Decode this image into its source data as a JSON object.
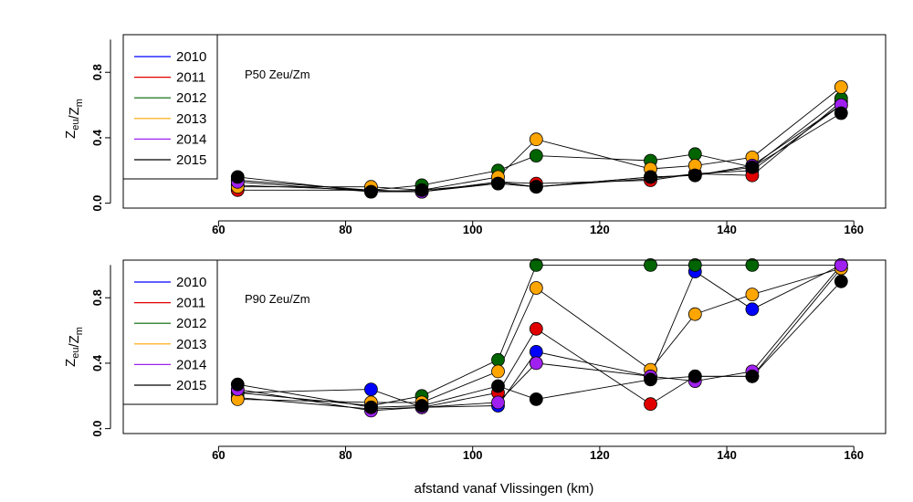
{
  "xlabel": "afstand vanaf Vlissingen (km)",
  "series_colors": {
    "2010": "#0000ff",
    "2011": "#e00000",
    "2012": "#006400",
    "2013": "#ffa500",
    "2014": "#a020f0",
    "2015": "#000000"
  },
  "chart_data": [
    {
      "type": "scatter",
      "title": "P50 Zeu/Zm",
      "ylabel": "Z_eu / Z_m",
      "xlim": [
        45,
        165
      ],
      "ylim": [
        -0.03,
        1.03
      ],
      "xticks": [
        60,
        80,
        100,
        120,
        140,
        160
      ],
      "yticks": [
        0.0,
        0.4,
        0.8
      ],
      "ytick_labels": [
        "0.0",
        "0.4",
        "0.8"
      ],
      "legend": [
        "2010",
        "2011",
        "2012",
        "2013",
        "2014",
        "2015"
      ],
      "legend_position": "top-left",
      "series": [
        {
          "name": "2010",
          "color": "#0000ff",
          "x": [
            63,
            84,
            92,
            104,
            110,
            128,
            135,
            144,
            158
          ],
          "y": [
            0.11,
            0.08,
            0.07,
            0.13,
            0.1,
            0.15,
            0.18,
            0.2,
            0.6
          ]
        },
        {
          "name": "2011",
          "color": "#e00000",
          "x": [
            63,
            84,
            92,
            104,
            110,
            128,
            135,
            144,
            158
          ],
          "y": [
            0.08,
            0.08,
            0.07,
            0.13,
            0.12,
            0.14,
            0.18,
            0.17,
            0.62
          ]
        },
        {
          "name": "2012",
          "color": "#006400",
          "x": [
            63,
            84,
            92,
            104,
            110,
            128,
            135,
            144,
            158
          ],
          "y": [
            0.14,
            0.08,
            0.11,
            0.2,
            0.29,
            0.26,
            0.3,
            0.22,
            0.64
          ]
        },
        {
          "name": "2013",
          "color": "#ffa500",
          "x": [
            63,
            84,
            92,
            104,
            110,
            128,
            135,
            144,
            158
          ],
          "y": [
            0.1,
            0.1,
            0.08,
            0.16,
            0.39,
            0.21,
            0.23,
            0.28,
            0.71
          ]
        },
        {
          "name": "2014",
          "color": "#a020f0",
          "x": [
            63,
            84,
            92,
            104,
            110,
            128,
            135,
            144,
            158
          ],
          "y": [
            0.13,
            0.07,
            0.07,
            0.12,
            0.1,
            0.16,
            0.17,
            0.23,
            0.6
          ]
        },
        {
          "name": "2015",
          "color": "#000000",
          "x": [
            63,
            84,
            92,
            104,
            110,
            128,
            135,
            144,
            158
          ],
          "y": [
            0.16,
            0.07,
            0.08,
            0.12,
            0.1,
            0.16,
            0.17,
            0.22,
            0.55
          ]
        }
      ]
    },
    {
      "type": "scatter",
      "title": "P90 Zeu/Zm",
      "ylabel": "Z_eu / Z_m",
      "xlim": [
        45,
        165
      ],
      "ylim": [
        -0.03,
        1.03
      ],
      "xticks": [
        60,
        80,
        100,
        120,
        140,
        160
      ],
      "yticks": [
        0.0,
        0.4,
        0.8
      ],
      "ytick_labels": [
        "0.0",
        "0.4",
        "0.8"
      ],
      "legend": [
        "2010",
        "2011",
        "2012",
        "2013",
        "2014",
        "2015"
      ],
      "legend_position": "top-left",
      "series": [
        {
          "name": "2010",
          "color": "#0000ff",
          "x": [
            63,
            84,
            92,
            104,
            110,
            128,
            135,
            144,
            158
          ],
          "y": [
            0.22,
            0.24,
            0.13,
            0.14,
            0.47,
            0.32,
            0.96,
            0.73,
            1.0
          ]
        },
        {
          "name": "2011",
          "color": "#e00000",
          "x": [
            63,
            84,
            92,
            104,
            110,
            128,
            135,
            144,
            158
          ],
          "y": [
            0.19,
            0.12,
            0.13,
            0.22,
            0.61,
            0.15,
            0.32,
            0.32,
            0.98
          ]
        },
        {
          "name": "2012",
          "color": "#006400",
          "x": [
            63,
            84,
            92,
            104,
            110,
            128,
            135,
            144,
            158
          ],
          "y": [
            0.22,
            0.14,
            0.2,
            0.42,
            1.0,
            1.0,
            1.0,
            1.0,
            1.0
          ]
        },
        {
          "name": "2013",
          "color": "#ffa500",
          "x": [
            63,
            84,
            92,
            104,
            110,
            128,
            135,
            144,
            158
          ],
          "y": [
            0.18,
            0.16,
            0.16,
            0.35,
            0.86,
            0.36,
            0.7,
            0.82,
            0.98
          ]
        },
        {
          "name": "2014",
          "color": "#a020f0",
          "x": [
            63,
            84,
            92,
            104,
            110,
            128,
            135,
            144,
            158
          ],
          "y": [
            0.24,
            0.11,
            0.13,
            0.16,
            0.4,
            0.32,
            0.29,
            0.35,
            1.0
          ]
        },
        {
          "name": "2015",
          "color": "#000000",
          "x": [
            63,
            84,
            92,
            104,
            110,
            128,
            135,
            144,
            158
          ],
          "y": [
            0.27,
            0.13,
            0.14,
            0.26,
            0.18,
            0.3,
            0.32,
            0.32,
            0.9
          ]
        }
      ]
    }
  ]
}
